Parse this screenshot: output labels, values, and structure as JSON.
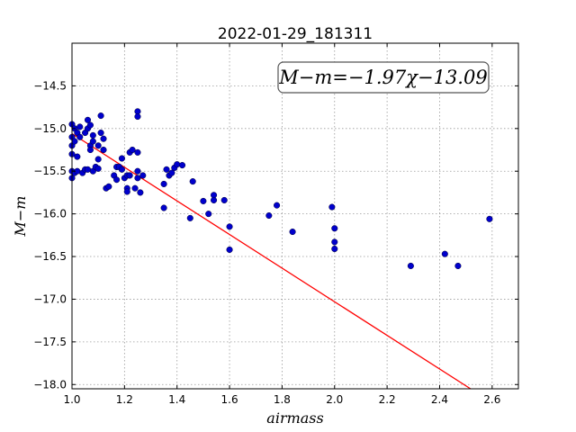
{
  "chart_data": {
    "type": "scatter",
    "title": "2022-01-29_181311",
    "xlabel": "airmass",
    "ylabel": "M−m",
    "annotation": "M−m=−1.97χ−13.09",
    "xlim": [
      1.0,
      2.7
    ],
    "ylim": [
      -18.05,
      -14.0
    ],
    "y_inverted": false,
    "grid": true,
    "xticks": [
      1.0,
      1.2,
      1.4,
      1.6,
      1.8,
      2.0,
      2.2,
      2.4,
      2.6
    ],
    "xtick_labels": [
      "1.0",
      "1.2",
      "1.4",
      "1.6",
      "1.8",
      "2.0",
      "2.2",
      "2.4",
      "2.6"
    ],
    "yticks": [
      -14.5,
      -15.0,
      -15.5,
      -16.0,
      -16.5,
      -17.0,
      -17.5,
      -18.0
    ],
    "ytick_labels": [
      "−14.5",
      "−15.0",
      "−15.5",
      "−16.0",
      "−16.5",
      "−17.0",
      "−17.5",
      "−18.0"
    ],
    "fit_line": {
      "slope": -1.97,
      "intercept": -13.09,
      "color": "#ff0000"
    },
    "point_color": "#0000cc",
    "points": [
      [
        1.0,
        -14.95
      ],
      [
        1.0,
        -15.1
      ],
      [
        1.0,
        -15.2
      ],
      [
        1.0,
        -15.3
      ],
      [
        1.0,
        -15.5
      ],
      [
        1.0,
        -15.58
      ],
      [
        1.01,
        -15.0
      ],
      [
        1.01,
        -15.15
      ],
      [
        1.01,
        -15.52
      ],
      [
        1.02,
        -15.05
      ],
      [
        1.02,
        -15.33
      ],
      [
        1.02,
        -15.5
      ],
      [
        1.03,
        -14.98
      ],
      [
        1.03,
        -15.1
      ],
      [
        1.04,
        -15.52
      ],
      [
        1.05,
        -15.48
      ],
      [
        1.05,
        -15.05
      ],
      [
        1.06,
        -14.9
      ],
      [
        1.06,
        -15.0
      ],
      [
        1.06,
        -15.48
      ],
      [
        1.07,
        -15.2
      ],
      [
        1.07,
        -15.25
      ],
      [
        1.07,
        -14.96
      ],
      [
        1.08,
        -15.08
      ],
      [
        1.08,
        -15.15
      ],
      [
        1.08,
        -15.5
      ],
      [
        1.09,
        -15.45
      ],
      [
        1.1,
        -15.47
      ],
      [
        1.1,
        -15.36
      ],
      [
        1.1,
        -15.2
      ],
      [
        1.11,
        -14.85
      ],
      [
        1.11,
        -15.05
      ],
      [
        1.12,
        -15.12
      ],
      [
        1.12,
        -15.25
      ],
      [
        1.13,
        -15.7
      ],
      [
        1.14,
        -15.68
      ],
      [
        1.16,
        -15.55
      ],
      [
        1.17,
        -15.45
      ],
      [
        1.17,
        -15.6
      ],
      [
        1.18,
        -15.45
      ],
      [
        1.19,
        -15.35
      ],
      [
        1.19,
        -15.48
      ],
      [
        1.2,
        -15.58
      ],
      [
        1.21,
        -15.7
      ],
      [
        1.21,
        -15.74
      ],
      [
        1.21,
        -15.55
      ],
      [
        1.22,
        -15.28
      ],
      [
        1.22,
        -15.55
      ],
      [
        1.23,
        -15.25
      ],
      [
        1.24,
        -15.7
      ],
      [
        1.25,
        -15.28
      ],
      [
        1.25,
        -15.5
      ],
      [
        1.25,
        -15.58
      ],
      [
        1.25,
        -14.8
      ],
      [
        1.25,
        -14.86
      ],
      [
        1.26,
        -15.75
      ],
      [
        1.27,
        -15.55
      ],
      [
        1.35,
        -15.65
      ],
      [
        1.35,
        -15.93
      ],
      [
        1.36,
        -15.48
      ],
      [
        1.37,
        -15.55
      ],
      [
        1.38,
        -15.52
      ],
      [
        1.39,
        -15.46
      ],
      [
        1.4,
        -15.42
      ],
      [
        1.42,
        -15.43
      ],
      [
        1.45,
        -16.05
      ],
      [
        1.46,
        -15.62
      ],
      [
        1.5,
        -15.85
      ],
      [
        1.52,
        -16.0
      ],
      [
        1.54,
        -15.78
      ],
      [
        1.54,
        -15.84
      ],
      [
        1.58,
        -15.84
      ],
      [
        1.6,
        -16.15
      ],
      [
        1.6,
        -16.42
      ],
      [
        1.75,
        -16.02
      ],
      [
        1.78,
        -15.9
      ],
      [
        1.84,
        -16.21
      ],
      [
        1.99,
        -15.92
      ],
      [
        2.0,
        -16.17
      ],
      [
        2.0,
        -16.33
      ],
      [
        2.0,
        -16.41
      ],
      [
        2.29,
        -16.61
      ],
      [
        2.42,
        -16.47
      ],
      [
        2.47,
        -16.61
      ],
      [
        2.59,
        -16.06
      ]
    ]
  }
}
